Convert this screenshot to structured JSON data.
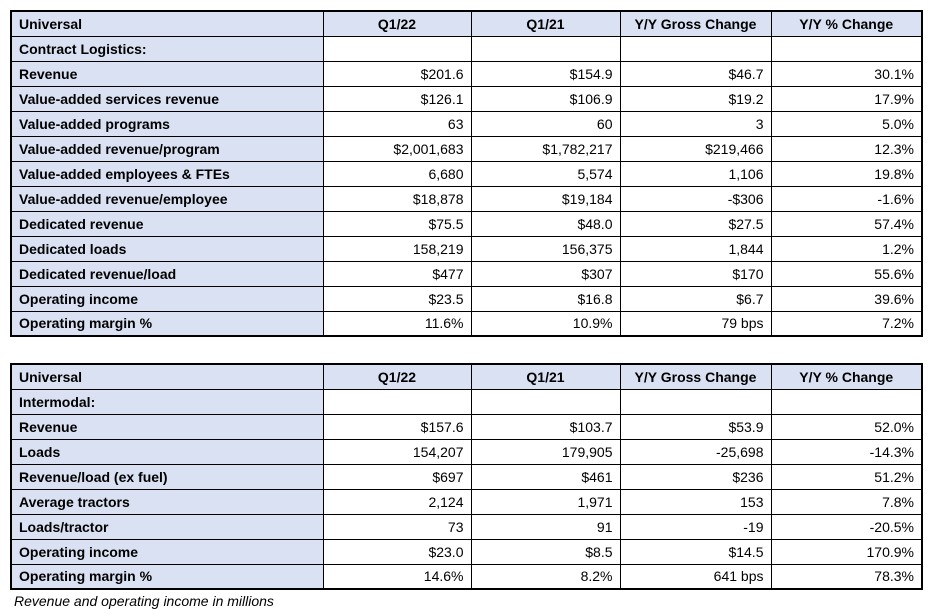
{
  "colors": {
    "header_fill": "#D9E1F2",
    "border": "#000000"
  },
  "footnote": "Revenue and operating income in millions",
  "tables": [
    {
      "corner_label": "Universal",
      "section_label": "Contract Logistics:",
      "columns": [
        "Q1/22",
        "Q1/21",
        "Y/Y Gross Change",
        "Y/Y % Change"
      ],
      "rows": [
        {
          "label": "Revenue",
          "values": [
            "$201.6",
            "$154.9",
            "$46.7",
            "30.1%"
          ]
        },
        {
          "label": "Value-added services revenue",
          "values": [
            "$126.1",
            "$106.9",
            "$19.2",
            "17.9%"
          ]
        },
        {
          "label": "Value-added programs",
          "values": [
            "63",
            "60",
            "3",
            "5.0%"
          ]
        },
        {
          "label": "Value-added revenue/program",
          "values": [
            "$2,001,683",
            "$1,782,217",
            "$219,466",
            "12.3%"
          ]
        },
        {
          "label": "Value-added employees & FTEs",
          "values": [
            "6,680",
            "5,574",
            "1,106",
            "19.8%"
          ]
        },
        {
          "label": "Value-added revenue/employee",
          "values": [
            "$18,878",
            "$19,184",
            "-$306",
            "-1.6%"
          ]
        },
        {
          "label": "Dedicated revenue",
          "values": [
            "$75.5",
            "$48.0",
            "$27.5",
            "57.4%"
          ]
        },
        {
          "label": "Dedicated loads",
          "values": [
            "158,219",
            "156,375",
            "1,844",
            "1.2%"
          ]
        },
        {
          "label": "Dedicated revenue/load",
          "values": [
            "$477",
            "$307",
            "$170",
            "55.6%"
          ]
        },
        {
          "label": "Operating income",
          "values": [
            "$23.5",
            "$16.8",
            "$6.7",
            "39.6%"
          ]
        },
        {
          "label": "Operating margin %",
          "values": [
            "11.6%",
            "10.9%",
            "79 bps",
            "7.2%"
          ]
        }
      ]
    },
    {
      "corner_label": "Universal",
      "section_label": "Intermodal:",
      "columns": [
        "Q1/22",
        "Q1/21",
        "Y/Y Gross Change",
        "Y/Y % Change"
      ],
      "rows": [
        {
          "label": "Revenue",
          "values": [
            "$157.6",
            "$103.7",
            "$53.9",
            "52.0%"
          ]
        },
        {
          "label": "Loads",
          "values": [
            "154,207",
            "179,905",
            "-25,698",
            "-14.3%"
          ]
        },
        {
          "label": "Revenue/load (ex fuel)",
          "values": [
            "$697",
            "$461",
            "$236",
            "51.2%"
          ]
        },
        {
          "label": "Average tractors",
          "values": [
            "2,124",
            "1,971",
            "153",
            "7.8%"
          ]
        },
        {
          "label": "Loads/tractor",
          "values": [
            "73",
            "91",
            "-19",
            "-20.5%"
          ]
        },
        {
          "label": "Operating income",
          "values": [
            "$23.0",
            "$8.5",
            "$14.5",
            "170.9%"
          ]
        },
        {
          "label": "Operating margin %",
          "values": [
            "14.6%",
            "8.2%",
            "641 bps",
            "78.3%"
          ]
        }
      ]
    }
  ]
}
